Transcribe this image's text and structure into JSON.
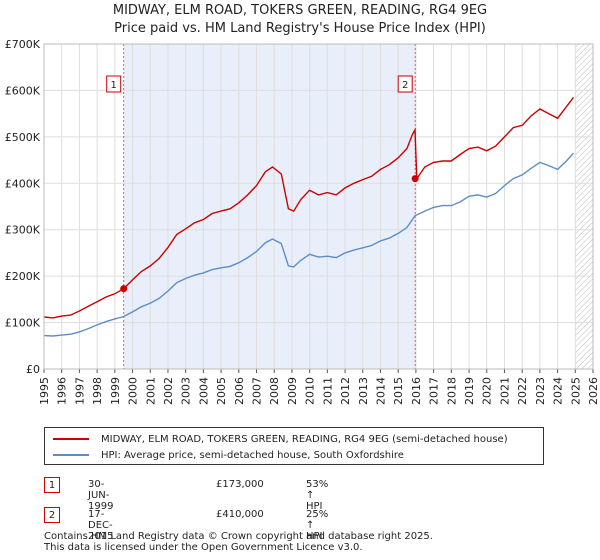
{
  "chart_data": {
    "type": "line",
    "title": "MIDWAY, ELM ROAD, TOKERS GREEN, READING, RG4 9EG",
    "subtitle": "Price paid vs. HM Land Registry's House Price Index (HPI)",
    "xlim": [
      1995,
      2026
    ],
    "ylim": [
      0,
      700000
    ],
    "y_ticks": [
      {
        "value": 0,
        "label": "£0"
      },
      {
        "value": 100000,
        "label": "£100K"
      },
      {
        "value": 200000,
        "label": "£200K"
      },
      {
        "value": 300000,
        "label": "£300K"
      },
      {
        "value": 400000,
        "label": "£400K"
      },
      {
        "value": 500000,
        "label": "£500K"
      },
      {
        "value": 600000,
        "label": "£600K"
      },
      {
        "value": 700000,
        "label": "£700K"
      }
    ],
    "x_ticks": [
      "1995",
      "1996",
      "1997",
      "1998",
      "1999",
      "2000",
      "2001",
      "2002",
      "2003",
      "2004",
      "2005",
      "2006",
      "2007",
      "2008",
      "2009",
      "2010",
      "2011",
      "2012",
      "2013",
      "2014",
      "2015",
      "2016",
      "2017",
      "2018",
      "2019",
      "2020",
      "2021",
      "2022",
      "2023",
      "2024",
      "2025",
      "2026"
    ],
    "ownership_shade": [
      1999.5,
      2015.96
    ],
    "forecast_start": 2025.0,
    "series": [
      {
        "name": "MIDWAY, ELM ROAD, TOKERS GREEN, READING, RG4 9EG (semi-detached house)",
        "color": "#cc0000",
        "x": [
          1995.0,
          1995.5,
          1996.0,
          1996.5,
          1997.0,
          1997.5,
          1998.0,
          1998.5,
          1999.0,
          1999.5,
          2000.0,
          2000.5,
          2001.0,
          2001.5,
          2002.0,
          2002.5,
          2003.0,
          2003.5,
          2004.0,
          2004.5,
          2005.0,
          2005.5,
          2006.0,
          2006.5,
          2007.0,
          2007.5,
          2007.9,
          2008.4,
          2008.8,
          2009.1,
          2009.5,
          2010.0,
          2010.5,
          2011.0,
          2011.5,
          2012.0,
          2012.5,
          2013.0,
          2013.5,
          2014.0,
          2014.5,
          2015.0,
          2015.5,
          2015.8,
          2015.95,
          2016.05,
          2016.5,
          2017.0,
          2017.5,
          2018.0,
          2018.5,
          2019.0,
          2019.5,
          2020.0,
          2020.5,
          2021.0,
          2021.5,
          2022.0,
          2022.5,
          2023.0,
          2023.5,
          2024.0,
          2024.5,
          2024.9
        ],
        "values": [
          112000,
          110000,
          114000,
          116000,
          125000,
          135000,
          145000,
          155000,
          162000,
          173000,
          192000,
          210000,
          222000,
          238000,
          262000,
          290000,
          302000,
          315000,
          322000,
          335000,
          340000,
          345000,
          358000,
          375000,
          395000,
          425000,
          435000,
          420000,
          345000,
          340000,
          365000,
          385000,
          375000,
          380000,
          375000,
          390000,
          400000,
          408000,
          415000,
          430000,
          440000,
          455000,
          475000,
          505000,
          515000,
          410000,
          435000,
          445000,
          448000,
          448000,
          462000,
          475000,
          478000,
          470000,
          480000,
          500000,
          520000,
          525000,
          545000,
          560000,
          550000,
          540000,
          565000,
          585000
        ]
      },
      {
        "name": "HPI: Average price, semi-detached house, South Oxfordshire",
        "color": "#5b8ec9",
        "x": [
          1995.0,
          1995.5,
          1996.0,
          1996.5,
          1997.0,
          1997.5,
          1998.0,
          1998.5,
          1999.0,
          1999.5,
          2000.0,
          2000.5,
          2001.0,
          2001.5,
          2002.0,
          2002.5,
          2003.0,
          2003.5,
          2004.0,
          2004.5,
          2005.0,
          2005.5,
          2006.0,
          2006.5,
          2007.0,
          2007.5,
          2007.9,
          2008.4,
          2008.8,
          2009.1,
          2009.5,
          2010.0,
          2010.5,
          2011.0,
          2011.5,
          2012.0,
          2012.5,
          2013.0,
          2013.5,
          2014.0,
          2014.5,
          2015.0,
          2015.5,
          2015.95,
          2016.5,
          2017.0,
          2017.5,
          2018.0,
          2018.5,
          2019.0,
          2019.5,
          2020.0,
          2020.5,
          2021.0,
          2021.5,
          2022.0,
          2022.5,
          2023.0,
          2023.5,
          2024.0,
          2024.5,
          2024.9
        ],
        "values": [
          72000,
          71000,
          73000,
          75000,
          80000,
          87000,
          95000,
          102000,
          108000,
          113000,
          123000,
          134000,
          142000,
          152000,
          168000,
          186000,
          195000,
          202000,
          207000,
          214000,
          218000,
          221000,
          229000,
          240000,
          253000,
          272000,
          280000,
          270000,
          222000,
          220000,
          234000,
          247000,
          241000,
          243000,
          240000,
          250000,
          256000,
          261000,
          266000,
          276000,
          282000,
          292000,
          305000,
          330000,
          340000,
          348000,
          352000,
          352000,
          360000,
          372000,
          375000,
          370000,
          378000,
          395000,
          410000,
          418000,
          432000,
          445000,
          438000,
          430000,
          448000,
          465000
        ]
      }
    ],
    "markers": [
      {
        "label": "1",
        "x": 1999.5,
        "value": 173000
      },
      {
        "label": "2",
        "x": 2015.96,
        "value": 410000
      }
    ],
    "legend_position": "below"
  },
  "sales": [
    {
      "marker": "1",
      "date": "30-JUN-1999",
      "price": "£173,000",
      "hpi": "53% ↑ HPI"
    },
    {
      "marker": "2",
      "date": "17-DEC-2015",
      "price": "£410,000",
      "hpi": "25% ↑ HPI"
    }
  ],
  "footer": "Contains HM Land Registry data © Crown copyright and database right 2025.\nThis data is licensed under the Open Government Licence v3.0."
}
